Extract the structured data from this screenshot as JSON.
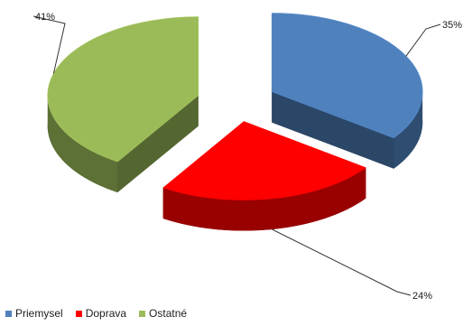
{
  "chart_data": {
    "type": "pie",
    "style": "3d-exploded",
    "title": "",
    "legend_position": "bottom-left",
    "categories": [
      "Priemysel",
      "Doprava",
      "Ostatné"
    ],
    "values": [
      35,
      24,
      41
    ],
    "data_labels": [
      "35%",
      "24%",
      "41%"
    ],
    "colors": {
      "Priemysel": "#4f81bd",
      "Doprava": "#ff0000",
      "Ostatné": "#9bbb59"
    }
  }
}
